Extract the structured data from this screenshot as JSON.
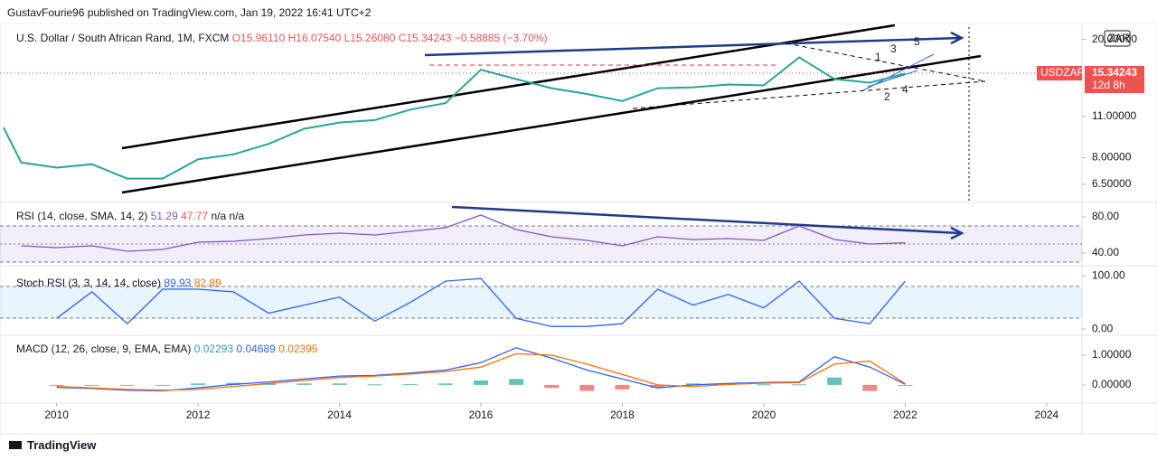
{
  "header": {
    "publisher": "GustavFourie96 published on TradingView.com, Jan 19, 2022 16:41 UTC+2",
    "symbol": "U.S. Dollar / South African Rand, 1M, FXCM",
    "open": "O15.96110",
    "high": "H16.07540",
    "low": "L15.26080",
    "close": "C15.34243",
    "change": "−0.58885 (−3.70%)",
    "currency": "ZAR",
    "countdown": "12d 8h"
  },
  "waves": [
    "1",
    "2",
    "3",
    "4",
    "5"
  ],
  "footer": {
    "brand": "TradingView"
  },
  "chart_data": [
    {
      "type": "line",
      "log_scale": true,
      "x": [
        2009.25,
        2009.5,
        2010,
        2010.5,
        2011,
        2011.5,
        2012,
        2012.5,
        2013,
        2013.5,
        2014,
        2014.5,
        2015,
        2015.5,
        2016,
        2016.5,
        2017,
        2017.5,
        2018,
        2018.5,
        2019,
        2019.5,
        2020,
        2020.5,
        2021,
        2021.5,
        2022
      ],
      "series": [
        {
          "name": "USDZAR",
          "color": "#26a69a",
          "values": [
            10.1,
            7.7,
            7.4,
            7.6,
            6.8,
            6.8,
            7.9,
            8.2,
            8.9,
            10.0,
            10.5,
            10.7,
            11.6,
            12.2,
            15.8,
            14.7,
            13.7,
            13.1,
            12.4,
            13.7,
            13.8,
            14.1,
            14.0,
            17.4,
            14.7,
            14.3,
            15.34243
          ]
        }
      ],
      "xlim": [
        2009.2,
        2024.5
      ],
      "xticks": [
        2010,
        2012,
        2014,
        2016,
        2018,
        2020,
        2022,
        2024
      ],
      "ylim": [
        5.73,
        22.0
      ],
      "yticks": [
        {
          "value": 20,
          "label": "20.00000"
        },
        {
          "value": 11,
          "label": "11.00000"
        },
        {
          "value": 8,
          "label": "8.00000"
        },
        {
          "value": 6.5,
          "label": "6.50000"
        }
      ]
    },
    {
      "type": "line",
      "title": "RSI (14, close, SMA, 14, 2)",
      "last_values": [
        "51.29",
        "47.77",
        "n/a",
        "n/a"
      ],
      "x": [
        2009.25,
        2009.5,
        2010,
        2010.5,
        2011,
        2011.5,
        2012,
        2012.5,
        2013,
        2013.5,
        2014,
        2014.5,
        2015,
        2015.5,
        2016,
        2016.5,
        2017,
        2017.5,
        2018,
        2018.5,
        2019,
        2019.5,
        2020,
        2020.5,
        2021,
        2021.5,
        2022
      ],
      "series": [
        {
          "color": "#7e57c2",
          "values": [
            null,
            48,
            46,
            48,
            42,
            44,
            52,
            53,
            56,
            60,
            62,
            60,
            64,
            68,
            82,
            66,
            58,
            54,
            48,
            58,
            55,
            56,
            54,
            70,
            55,
            50,
            51.29
          ]
        }
      ],
      "ylim": [
        28,
        95
      ],
      "yticks": [
        {
          "value": 80,
          "label": "80.00"
        },
        {
          "value": 40,
          "label": "40.00"
        }
      ]
    },
    {
      "type": "line",
      "title": "Stoch RSI (3, 3, 14, 14, close)",
      "last_values": [
        "89.93",
        "82.89"
      ],
      "x": [
        2009.25,
        2009.5,
        2010,
        2010.5,
        2011,
        2011.5,
        2012,
        2012.5,
        2013,
        2013.5,
        2014,
        2014.5,
        2015,
        2015.5,
        2016,
        2016.5,
        2017,
        2017.5,
        2018,
        2018.5,
        2019,
        2019.5,
        2020,
        2020.5,
        2021,
        2021.5,
        2022
      ],
      "series": [
        {
          "color": "#2962ff",
          "values": [
            null,
            null,
            20,
            70,
            10,
            75,
            75,
            70,
            30,
            45,
            60,
            15,
            50,
            90,
            95,
            20,
            5,
            5,
            10,
            75,
            45,
            65,
            40,
            90,
            20,
            10,
            89.93
          ]
        }
      ],
      "ylim": [
        -10,
        114
      ],
      "yticks": [
        {
          "value": 100,
          "label": "100.00"
        },
        {
          "value": 0,
          "label": "0.00"
        }
      ]
    },
    {
      "type": "line",
      "title": "MACD (12, 26, close, 9, EMA, EMA)",
      "last_values": [
        "0.02293",
        "0.04689",
        "0.02395"
      ],
      "x": [
        2009.25,
        2009.5,
        2010,
        2010.5,
        2011,
        2011.5,
        2012,
        2012.5,
        2013,
        2013.5,
        2014,
        2014.5,
        2015,
        2015.5,
        2016,
        2016.5,
        2017,
        2017.5,
        2018,
        2018.5,
        2019,
        2019.5,
        2020,
        2020.5,
        2021,
        2021.5,
        2022
      ],
      "series": [
        {
          "color": "#26a69a",
          "style": "histogram",
          "values": [
            null,
            null,
            -0.03,
            -0.02,
            -0.03,
            -0.02,
            0.05,
            0.07,
            0.05,
            0.05,
            0.05,
            0.02,
            0.03,
            0.05,
            0.15,
            0.2,
            -0.1,
            -0.2,
            -0.15,
            -0.1,
            0.05,
            0.03,
            0.02,
            0.02,
            0.25,
            -0.2,
            -0.02396
          ]
        },
        {
          "color": "#2962ff",
          "values": [
            null,
            null,
            -0.08,
            -0.12,
            -0.18,
            -0.2,
            -0.1,
            0.02,
            0.1,
            0.2,
            0.3,
            0.32,
            0.4,
            0.5,
            0.75,
            1.25,
            0.9,
            0.5,
            0.2,
            -0.1,
            0.0,
            0.05,
            0.08,
            0.1,
            0.95,
            0.6,
            0.02293
          ]
        },
        {
          "color": "#ff6d00",
          "values": [
            null,
            null,
            -0.05,
            -0.1,
            -0.15,
            -0.18,
            -0.15,
            -0.05,
            0.05,
            0.15,
            0.25,
            0.3,
            0.37,
            0.45,
            0.6,
            1.05,
            1.0,
            0.7,
            0.35,
            0.0,
            -0.05,
            0.02,
            0.06,
            0.08,
            0.7,
            0.8,
            0.04689
          ]
        }
      ],
      "ylim": [
        -0.58,
        1.64
      ],
      "yticks": [
        {
          "value": 1,
          "label": "1.00000"
        },
        {
          "value": 0,
          "label": "0.00000"
        }
      ]
    }
  ]
}
